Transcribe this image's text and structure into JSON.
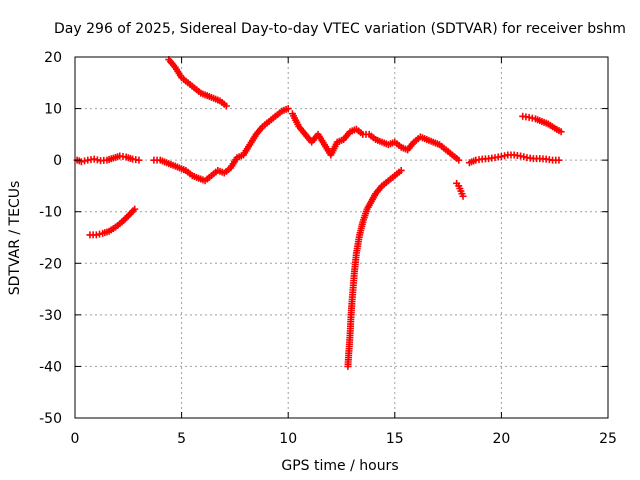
{
  "chart_data": {
    "type": "scatter",
    "title": "Day 296 of 2025, Sidereal Day-to-day VTEC variation (SDTVAR) for receiver bshm",
    "xlabel": "GPS time / hours",
    "ylabel": "SDTVAR / TECUs",
    "xlim": [
      0,
      25
    ],
    "ylim": [
      -50,
      20
    ],
    "xticks": [
      0,
      5,
      10,
      15,
      20,
      25
    ],
    "yticks": [
      -50,
      -40,
      -30,
      -20,
      -10,
      0,
      10,
      20
    ],
    "grid": true,
    "marker": "+",
    "marker_color": "#ff0000",
    "series": [
      {
        "name": "main",
        "x": [
          0.1,
          0.3,
          0.6,
          0.9,
          1.2,
          1.5,
          1.8,
          2.1,
          2.4,
          2.7,
          3.0
        ],
        "y": [
          0.0,
          -0.3,
          0.0,
          0.2,
          -0.1,
          0.0,
          0.4,
          0.8,
          0.6,
          0.2,
          0.0
        ]
      },
      {
        "name": "main-2",
        "x": [
          3.7,
          4.0,
          4.3,
          4.6,
          4.9,
          5.2,
          5.5,
          5.8,
          6.1,
          6.4,
          6.7,
          7.0,
          7.3,
          7.6,
          7.9,
          8.2,
          8.5,
          8.8,
          9.1,
          9.4,
          9.7,
          10.0
        ],
        "y": [
          0.0,
          0.0,
          -0.5,
          -1.0,
          -1.5,
          -2.0,
          -3.0,
          -3.5,
          -4.0,
          -3.0,
          -2.0,
          -2.5,
          -1.5,
          0.5,
          1.0,
          3.0,
          5.0,
          6.5,
          7.5,
          8.5,
          9.5,
          10.0
        ]
      },
      {
        "name": "main-3",
        "x": [
          10.2,
          10.5,
          10.8,
          11.1,
          11.4,
          11.7,
          12.0,
          12.3,
          12.6,
          12.9,
          13.2,
          13.5,
          13.8,
          14.1,
          14.4,
          14.7,
          15.0,
          15.3,
          15.6,
          15.9,
          16.2,
          16.5,
          16.8,
          17.1,
          17.4,
          17.7,
          18.0
        ],
        "y": [
          9.0,
          6.5,
          5.0,
          3.5,
          5.0,
          3.0,
          1.0,
          3.5,
          4.0,
          5.5,
          6.0,
          5.0,
          5.0,
          4.0,
          3.5,
          3.0,
          3.5,
          2.5,
          2.0,
          3.5,
          4.5,
          4.0,
          3.5,
          3.0,
          2.0,
          1.0,
          0.0
        ]
      },
      {
        "name": "main-4",
        "x": [
          18.5,
          18.8,
          19.1,
          19.4,
          19.7,
          20.0,
          20.3,
          20.6,
          20.9,
          21.2,
          21.5,
          21.8,
          22.1,
          22.4,
          22.7
        ],
        "y": [
          -0.5,
          0.0,
          0.2,
          0.3,
          0.5,
          0.7,
          1.0,
          1.0,
          0.8,
          0.5,
          0.3,
          0.3,
          0.2,
          0.0,
          0.0
        ]
      },
      {
        "name": "upper-arc",
        "x": [
          4.4,
          4.7,
          5.0,
          5.3,
          5.6,
          5.9,
          6.2,
          6.5,
          6.8,
          7.1
        ],
        "y": [
          19.5,
          18.0,
          16.0,
          15.0,
          14.0,
          13.0,
          12.5,
          12.0,
          11.5,
          10.5
        ]
      },
      {
        "name": "upper-right",
        "x": [
          21.0,
          21.3,
          21.6,
          21.9,
          22.2,
          22.5,
          22.8
        ],
        "y": [
          8.5,
          8.3,
          8.0,
          7.5,
          7.0,
          6.2,
          5.5
        ]
      },
      {
        "name": "lower-left",
        "x": [
          0.7,
          1.0,
          1.3,
          1.6,
          1.9,
          2.2,
          2.5,
          2.8
        ],
        "y": [
          -14.5,
          -14.5,
          -14.2,
          -13.8,
          -13.0,
          -12.0,
          -10.8,
          -9.5
        ]
      },
      {
        "name": "recovery-curve",
        "x": [
          12.8,
          12.85,
          12.9,
          12.95,
          13.0,
          13.1,
          13.2,
          13.35,
          13.5,
          13.7,
          13.9,
          14.1,
          14.4,
          14.7,
          15.0,
          15.3
        ],
        "y": [
          -40.0,
          -37.0,
          -34.0,
          -30.0,
          -27.0,
          -22.0,
          -18.0,
          -14.5,
          -12.0,
          -9.5,
          -8.0,
          -6.5,
          -5.0,
          -4.0,
          -3.0,
          -2.0
        ]
      },
      {
        "name": "drop-right",
        "x": [
          17.9,
          18.0,
          18.1,
          18.2
        ],
        "y": [
          -4.5,
          -5.0,
          -6.0,
          -7.0
        ]
      }
    ]
  }
}
